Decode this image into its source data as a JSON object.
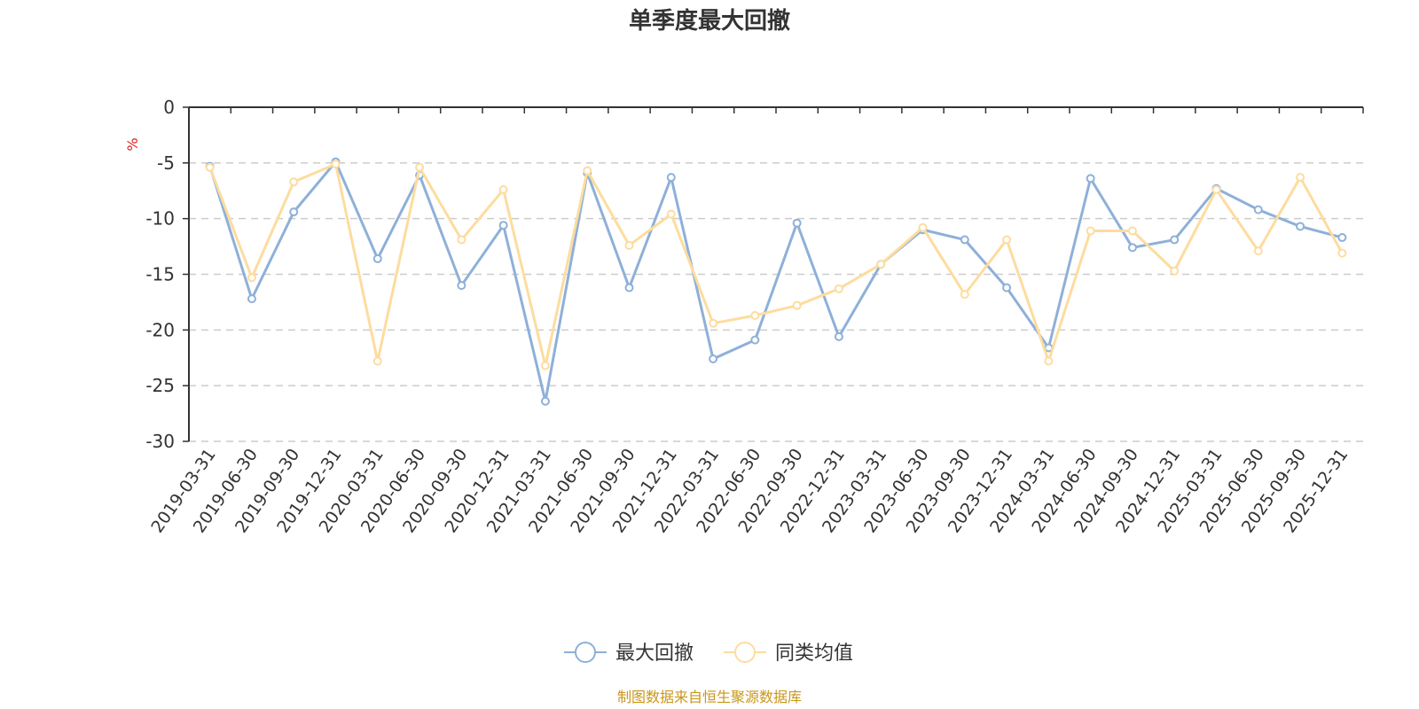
{
  "chart_data": {
    "type": "line",
    "title": "单季度最大回撤",
    "ylabel": "%",
    "ylim": [
      -30,
      0
    ],
    "yticks": [
      0,
      -5,
      -10,
      -15,
      -20,
      -25,
      -30
    ],
    "grid": true,
    "legend_position": "bottom-center",
    "categories": [
      "2019-03-31",
      "2019-06-30",
      "2019-09-30",
      "2019-12-31",
      "2020-03-31",
      "2020-06-30",
      "2020-09-30",
      "2020-12-31",
      "2021-03-31",
      "2021-06-30",
      "2021-09-30",
      "2021-12-31",
      "2022-03-31",
      "2022-06-30",
      "2022-09-30",
      "2022-12-31",
      "2023-03-31",
      "2023-06-30",
      "2023-09-30",
      "2023-12-31",
      "2024-03-31",
      "2024-06-30",
      "2024-09-30",
      "2024-12-31",
      "2025-03-31",
      "2025-06-30",
      "2025-09-30",
      "2025-12-31"
    ],
    "series": [
      {
        "name": "最大回撤",
        "color": "#8eb0d9",
        "values": [
          -5.3,
          -17.2,
          -9.4,
          -4.9,
          -13.6,
          -6.1,
          -16.0,
          -10.6,
          -26.4,
          -5.9,
          -16.2,
          -6.3,
          -22.6,
          -20.9,
          -10.4,
          -20.6,
          -14.1,
          -11.0,
          -11.9,
          -16.2,
          -21.6,
          -6.4,
          -12.6,
          -11.9,
          -7.3,
          -9.2,
          -10.7,
          -11.7
        ]
      },
      {
        "name": "同类均值",
        "color": "#fddc9f",
        "values": [
          -5.4,
          -15.3,
          -6.7,
          -5.1,
          -22.8,
          -5.4,
          -11.9,
          -7.4,
          -23.2,
          -5.7,
          -12.4,
          -9.6,
          -19.4,
          -18.7,
          -17.8,
          -16.3,
          -14.1,
          -10.8,
          -16.8,
          -11.9,
          -22.8,
          -11.1,
          -11.1,
          -14.7,
          -7.4,
          -12.9,
          -6.3,
          -13.1
        ]
      }
    ]
  },
  "source_text": "制图数据来自恒生聚源数据库",
  "colors": {
    "axis": "#333333",
    "grid": "#cccccc",
    "unit": "#e02020",
    "source": "#c9961a"
  }
}
